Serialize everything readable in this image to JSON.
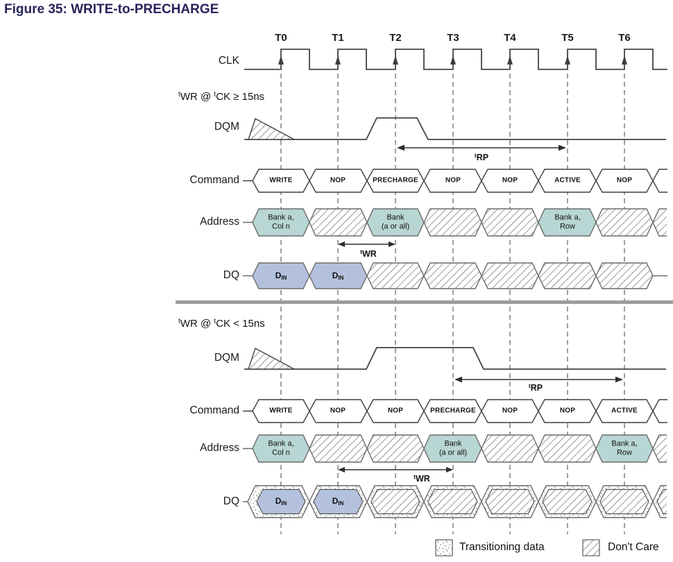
{
  "title": "Figure 35: WRITE-to-PRECHARGE",
  "colors": {
    "address_fill": "#b8d6d4",
    "data_fill": "#b4c1dd",
    "line": "#444444",
    "dash": "#7e7e7e",
    "divider": "#9c9c9c",
    "title_color": "#27245a"
  },
  "timeline": {
    "labels": [
      "T0",
      "T1",
      "T2",
      "T3",
      "T4",
      "T5",
      "T6"
    ]
  },
  "row_labels": {
    "clk": "CLK",
    "dqm": "DQM",
    "command": "Command",
    "address": "Address",
    "dq": "DQ"
  },
  "din": {
    "base": "D",
    "sub": "IN"
  },
  "sections": [
    {
      "label_parts": [
        "t",
        "WR @ ",
        "t",
        "CK ≥ 15ns"
      ],
      "commands": [
        "WRITE",
        "NOP",
        "PRECHARGE",
        "NOP",
        "NOP",
        "ACTIVE",
        "NOP"
      ],
      "address": [
        {
          "type": "data",
          "line1": "Bank a,",
          "line2": "Col n"
        },
        {
          "type": "dont_care"
        },
        {
          "type": "data",
          "line1": "Bank",
          "line2": "(a or all)"
        },
        {
          "type": "dont_care"
        },
        {
          "type": "dont_care"
        },
        {
          "type": "data",
          "line1": "Bank a,",
          "line2": "Row"
        },
        {
          "type": "dont_care"
        }
      ],
      "dq": [
        {
          "type": "data_in"
        },
        {
          "type": "data_in"
        },
        {
          "type": "dont_care"
        },
        {
          "type": "dont_care"
        },
        {
          "type": "dont_care"
        },
        {
          "type": "dont_care"
        },
        {
          "type": "dont_care"
        }
      ],
      "timing": [
        {
          "sup": "t",
          "base": "WR",
          "from": "T1",
          "to": "T2"
        },
        {
          "sup": "t",
          "base": "RP",
          "from": "T2",
          "to": "T5"
        }
      ]
    },
    {
      "label_parts": [
        "t",
        "WR @ ",
        "t",
        "CK < 15ns"
      ],
      "commands": [
        "WRITE",
        "NOP",
        "NOP",
        "PRECHARGE",
        "NOP",
        "NOP",
        "ACTIVE"
      ],
      "address": [
        {
          "type": "data",
          "line1": "Bank a,",
          "line2": "Col n"
        },
        {
          "type": "dont_care"
        },
        {
          "type": "dont_care"
        },
        {
          "type": "data",
          "line1": "Bank",
          "line2": "(a or all)"
        },
        {
          "type": "dont_care"
        },
        {
          "type": "dont_care"
        },
        {
          "type": "data",
          "line1": "Bank a,",
          "line2": "Row"
        }
      ],
      "dq": [
        {
          "type": "data_in_transitioning"
        },
        {
          "type": "data_in_transitioning"
        },
        {
          "type": "dont_care_transitioning"
        },
        {
          "type": "dont_care_transitioning"
        },
        {
          "type": "dont_care_transitioning"
        },
        {
          "type": "dont_care_transitioning"
        },
        {
          "type": "dont_care_transitioning"
        }
      ],
      "timing": [
        {
          "sup": "t",
          "base": "WR",
          "from": "T1",
          "to": "T3"
        },
        {
          "sup": "t",
          "base": "RP",
          "from": "T3",
          "to": "T6"
        }
      ]
    }
  ],
  "legend": [
    {
      "label": "Transitioning data",
      "pattern": "stipple"
    },
    {
      "label": "Don't Care",
      "pattern": "hatch"
    }
  ]
}
